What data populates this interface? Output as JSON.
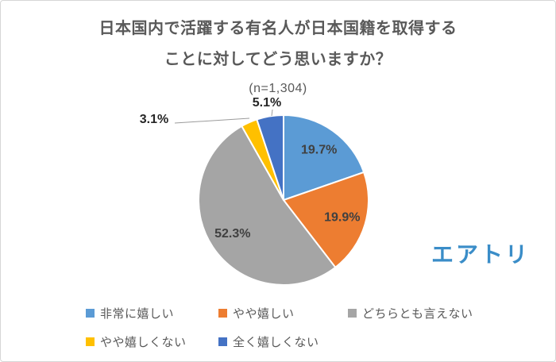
{
  "title": {
    "line1": "日本国内で活躍する有名人が日本国籍を取得する",
    "line2": "ことに対してどう思いますか？",
    "subtitle": "(n=1,304)"
  },
  "logo": {
    "text": "エアトリ",
    "color": "#3A8DC8"
  },
  "chart_data": {
    "type": "pie",
    "title": "日本国内で活躍する有名人が日本国籍を取得することに対してどう思いますか？",
    "sample_size_label": "(n=1,304)",
    "start_angle": "top",
    "direction": "clockwise",
    "legend_position": "bottom",
    "slice_border_color": "#ffffff",
    "slices": [
      {
        "label": "非常に嬉しい",
        "value": 19.7,
        "pct_label": "19.7%",
        "color": "#5B9BD5",
        "label_placement": "inside"
      },
      {
        "label": "やや嬉しい",
        "value": 19.9,
        "pct_label": "19.9%",
        "color": "#ED7D31",
        "label_placement": "inside"
      },
      {
        "label": "どちらとも言えない",
        "value": 52.3,
        "pct_label": "52.3%",
        "color": "#A5A5A5",
        "label_placement": "inside"
      },
      {
        "label": "やや嬉しくない",
        "value": 3.1,
        "pct_label": "3.1%",
        "color": "#FFC000",
        "label_placement": "outside"
      },
      {
        "label": "全く嬉しくない",
        "value": 5.1,
        "pct_label": "5.1%",
        "color": "#4472C4",
        "label_placement": "outside"
      }
    ]
  }
}
